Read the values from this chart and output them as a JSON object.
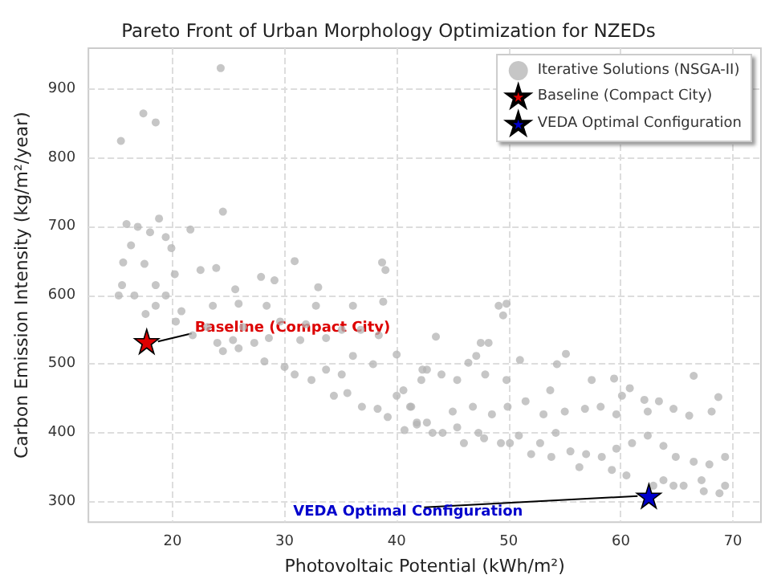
{
  "chart_data": {
    "type": "scatter",
    "title": "Pareto Front of Urban Morphology Optimization for NZEDs",
    "xlabel": "Photovoltaic Potential (kWh/m²)",
    "ylabel": "Carbon Emission Intensity (kg/m²/year)",
    "xlim": [
      12.5,
      72.5
    ],
    "ylim": [
      270,
      960
    ],
    "xticks": [
      20,
      30,
      40,
      50,
      60,
      70
    ],
    "yticks": [
      300,
      400,
      500,
      600,
      700,
      800,
      900
    ],
    "grid": true,
    "legend": "top right",
    "series": [
      {
        "name": "Iterative Solutions (NSGA-II)",
        "color": "#b3b3b3",
        "marker": "circle",
        "x": [
          24.3,
          17.4,
          18.5,
          15.4,
          24.5,
          15.9,
          16.9,
          18.8,
          18.0,
          21.6,
          16.3,
          19.4,
          15.6,
          17.5,
          19.9,
          15.5,
          16.6,
          18.5,
          19.4,
          20.2,
          15.2,
          22.5,
          23.9,
          25.6,
          27.9,
          29.1,
          30.9,
          33.0,
          38.7,
          39.0,
          38.8,
          36.1,
          32.8,
          28.4,
          25.9,
          23.6,
          20.8,
          18.5,
          17.6,
          20.3,
          23.1,
          26.3,
          29.6,
          31.9,
          35.1,
          36.8,
          38.4,
          33.7,
          31.4,
          28.6,
          25.4,
          24.0,
          21.8,
          24.5,
          25.9,
          27.3,
          28.2,
          30.0,
          30.9,
          32.4,
          33.7,
          35.1,
          36.1,
          37.9,
          34.4,
          35.6,
          36.9,
          38.3,
          39.2,
          40.0,
          41.2,
          40.7,
          41.8,
          40.0,
          42.3,
          49.1,
          49.8,
          49.5,
          43.5,
          47.5,
          48.2,
          55.1,
          51.0,
          54.3,
          47.1,
          46.4,
          42.7,
          42.2,
          44.0,
          45.4,
          47.9,
          49.8,
          53.7,
          57.4,
          59.4,
          60.1,
          60.8,
          62.1,
          63.4,
          66.5,
          68.7,
          68.1,
          66.1,
          64.7,
          62.4,
          59.6,
          58.2,
          56.8,
          55.0,
          53.1,
          51.5,
          49.9,
          48.5,
          46.8,
          45.0,
          42.7,
          41.3,
          40.6,
          43.2,
          45.4,
          47.3,
          49.3,
          50.9,
          52.8,
          54.2,
          55.5,
          56.9,
          58.3,
          59.6,
          61.0,
          62.4,
          63.8,
          64.9,
          66.5,
          67.9,
          69.3,
          59.2,
          60.5,
          63.8,
          65.6,
          67.4,
          68.8,
          69.3,
          67.2,
          64.7,
          62.9,
          56.3,
          53.8,
          52.0,
          50.1,
          47.8,
          46.0,
          44.1,
          41.8
        ],
        "values": [
          931,
          865,
          852,
          825,
          722,
          704,
          700,
          712,
          692,
          696,
          673,
          685,
          648,
          646,
          669,
          615,
          600,
          615,
          600,
          631,
          600,
          637,
          640,
          609,
          627,
          622,
          650,
          612,
          648,
          637,
          591,
          585,
          585,
          585,
          588,
          585,
          577,
          585,
          573,
          562,
          554,
          554,
          562,
          558,
          550,
          550,
          542,
          538,
          535,
          538,
          535,
          531,
          542,
          519,
          523,
          531,
          504,
          496,
          485,
          477,
          492,
          485,
          512,
          500,
          454,
          458,
          438,
          435,
          423,
          454,
          438,
          404,
          415,
          514,
          492,
          585,
          588,
          571,
          540,
          531,
          531,
          515,
          506,
          500,
          512,
          502,
          492,
          477,
          485,
          477,
          485,
          477,
          462,
          477,
          479,
          454,
          465,
          448,
          446,
          483,
          452,
          431,
          425,
          435,
          431,
          427,
          438,
          435,
          431,
          427,
          446,
          438,
          427,
          438,
          431,
          415,
          438,
          462,
          400,
          408,
          400,
          385,
          396,
          385,
          400,
          373,
          369,
          365,
          377,
          385,
          396,
          381,
          365,
          358,
          354,
          365,
          346,
          338,
          331,
          323,
          315,
          312,
          323,
          331,
          323,
          323,
          350,
          365,
          369,
          385,
          392,
          385,
          400,
          412
        ]
      },
      {
        "name": "Baseline (Compact City)",
        "color": "#dd0000",
        "marker": "star",
        "x": [
          17.7
        ],
        "values": [
          533
        ]
      },
      {
        "name": "VEDA Optimal Configuration",
        "color": "#0000cc",
        "marker": "star",
        "x": [
          62.5
        ],
        "values": [
          308
        ]
      }
    ],
    "annotations": [
      {
        "text": "Baseline (Compact City)",
        "x": 17.7,
        "y": 533
      },
      {
        "text": "VEDA Optimal Configuration",
        "x": 62.5,
        "y": 308
      }
    ]
  }
}
